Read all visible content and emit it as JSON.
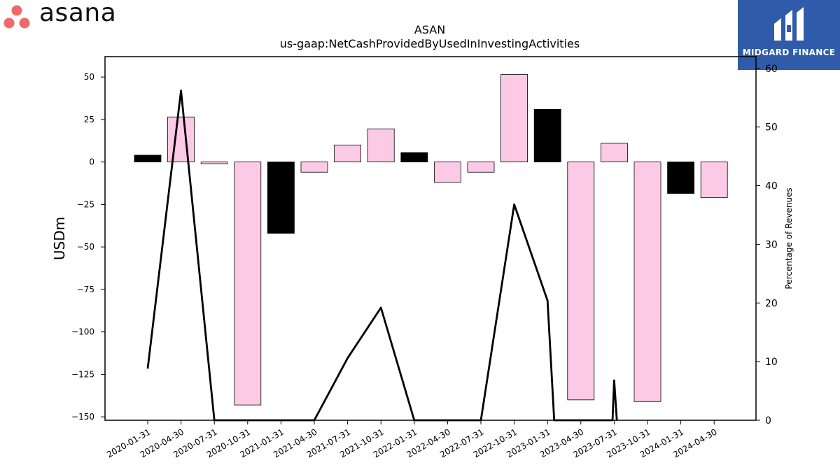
{
  "branding": {
    "asana_word": "asana",
    "midgard_text": "MIDGARD FINANCE",
    "asana_color": "#f06a6a",
    "midgard_color": "#2f5baa"
  },
  "chart_data": {
    "type": "bar",
    "title": "ASAN",
    "subtitle": "us-gaap:NetCashProvidedByUsedInInvestingActivities",
    "ylabel": "USDm",
    "y2label": "Percentage of Revenues",
    "ylim": [
      -152,
      62
    ],
    "y2lim": [
      0,
      62
    ],
    "yticks": [
      50,
      25,
      0,
      -25,
      -50,
      -75,
      -100,
      -125,
      -150
    ],
    "yticklabels": [
      "50",
      "25",
      "0",
      "−25",
      "−50",
      "−75",
      "−100",
      "−125",
      "−150"
    ],
    "y2ticks": [
      0,
      10,
      20,
      30,
      40,
      50,
      60
    ],
    "categories": [
      "2020-01-31",
      "2020-04-30",
      "2020-07-31",
      "2020-10-31",
      "2021-01-31",
      "2021-04-30",
      "2021-07-31",
      "2021-10-31",
      "2022-01-31",
      "2022-04-30",
      "2022-07-31",
      "2022-10-31",
      "2023-01-31",
      "2023-04-30",
      "2023-07-31",
      "2023-10-31",
      "2024-01-31",
      "2024-04-30"
    ],
    "series": [
      {
        "role": "bars",
        "values": [
          4,
          26.5,
          -1,
          -143,
          -42,
          -6,
          10,
          19.5,
          5.5,
          -12,
          -6,
          51.5,
          31,
          -140,
          11,
          -141,
          -18.5,
          -21
        ],
        "colors": [
          "#000000",
          "#fccae6",
          "#fccae6",
          "#fccae6",
          "#000000",
          "#fccae6",
          "#fccae6",
          "#fccae6",
          "#000000",
          "#fccae6",
          "#fccae6",
          "#fccae6",
          "#000000",
          "#fccae6",
          "#fccae6",
          "#fccae6",
          "#000000",
          "#fccae6"
        ]
      },
      {
        "role": "line",
        "axis": "right",
        "color": "#000000",
        "points": [
          {
            "x": 0,
            "y": 8.8
          },
          {
            "x": 1,
            "y": 56.2
          },
          {
            "x": 2,
            "y": -0.5
          },
          {
            "x": 5,
            "y": -0.5
          },
          {
            "x": 6,
            "y": 10.6
          },
          {
            "x": 7,
            "y": 19.2
          },
          {
            "x": 8,
            "y": -0.5
          },
          {
            "x": 10,
            "y": -0.5
          },
          {
            "x": 11,
            "y": 36.8
          },
          {
            "x": 12,
            "y": 20.4
          },
          {
            "x": 12.2,
            "y": -0.5
          },
          {
            "x": 13.95,
            "y": -0.5
          },
          {
            "x": 14.0,
            "y": 6.8
          },
          {
            "x": 14.08,
            "y": -0.5
          }
        ]
      }
    ],
    "grid": false
  }
}
